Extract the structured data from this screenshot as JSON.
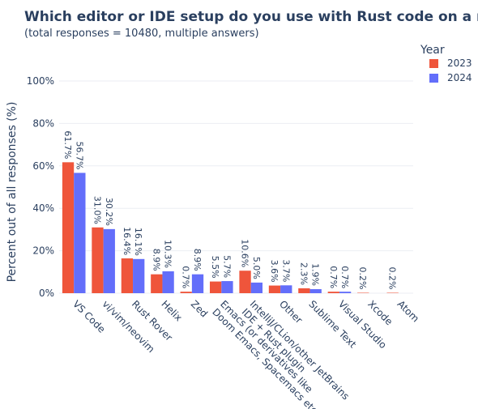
{
  "chart_data": {
    "type": "bar",
    "title": "Which editor or IDE setup do you use with Rust code on a regular basis?",
    "subtitle": "(total responses = 10480, multiple answers)",
    "ylabel": "Percent out of all responses (%)",
    "xlabel": "",
    "ylim": [
      0,
      100
    ],
    "yticks": [
      0,
      20,
      40,
      60,
      80,
      100
    ],
    "ytick_labels": [
      "0%",
      "20%",
      "40%",
      "60%",
      "80%",
      "100%"
    ],
    "grid": true,
    "legend": {
      "title": "Year",
      "position": "top-right"
    },
    "categories": [
      [
        "VS Code"
      ],
      [
        "vi/vim/neovim"
      ],
      [
        "Rust Rover"
      ],
      [
        "Helix"
      ],
      [
        "Zed"
      ],
      [
        "Emacs (or derivatives like",
        "Doom Emacs, Spacemacs etc.)"
      ],
      [
        "IntelliJ/CLion/other JetBrains",
        "IDE + Rust plugin"
      ],
      [
        "Other"
      ],
      [
        "Sublime Text"
      ],
      [
        "Visual Studio"
      ],
      [
        "Xcode"
      ],
      [
        "Atom"
      ]
    ],
    "series": [
      {
        "name": "2023",
        "color": "#ef553b",
        "values": [
          61.7,
          31.0,
          16.4,
          8.9,
          0.7,
          5.5,
          10.6,
          3.6,
          2.3,
          0.7,
          0.2,
          0.2
        ],
        "labels": [
          "61.7%",
          "31.0%",
          "16.4%",
          "8.9%",
          "0.7%",
          "5.5%",
          "10.6%",
          "3.6%",
          "2.3%",
          "0.7%",
          "0.2%",
          "0.2%"
        ]
      },
      {
        "name": "2024",
        "color": "#636efa",
        "values": [
          56.7,
          30.2,
          16.1,
          10.3,
          8.9,
          5.7,
          5.0,
          3.7,
          1.9,
          0.7,
          null,
          null
        ],
        "labels": [
          "56.7%",
          "30.2%",
          "16.1%",
          "10.3%",
          "8.9%",
          "5.7%",
          "5.0%",
          "3.7%",
          "1.9%",
          "0.7%",
          "",
          ""
        ]
      }
    ]
  }
}
